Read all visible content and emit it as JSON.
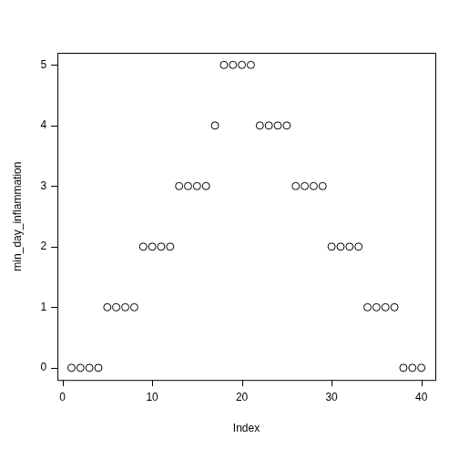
{
  "chart_data": {
    "type": "scatter",
    "x_label": "Index",
    "y_label": "min_day_inflammation",
    "x": [
      1,
      2,
      3,
      4,
      5,
      6,
      7,
      8,
      9,
      10,
      11,
      12,
      13,
      14,
      15,
      16,
      17,
      18,
      19,
      20,
      21,
      22,
      23,
      24,
      25,
      26,
      27,
      28,
      29,
      30,
      31,
      32,
      33,
      34,
      35,
      36,
      37,
      38,
      39,
      40
    ],
    "values": [
      0,
      0,
      0,
      0,
      1,
      1,
      1,
      1,
      2,
      2,
      2,
      2,
      3,
      3,
      3,
      3,
      4,
      5,
      5,
      5,
      5,
      4,
      4,
      4,
      4,
      3,
      3,
      3,
      3,
      2,
      2,
      2,
      2,
      1,
      1,
      1,
      1,
      0,
      0,
      0
    ],
    "color": "#000000",
    "marker": "circle-open",
    "xlim": [
      -0.56,
      41.56
    ],
    "xticks": [
      0,
      10,
      20,
      30,
      40
    ],
    "ylim": [
      -0.2,
      5.2
    ],
    "yticks": [
      0,
      1,
      2,
      3,
      4,
      5
    ],
    "grid": false
  }
}
